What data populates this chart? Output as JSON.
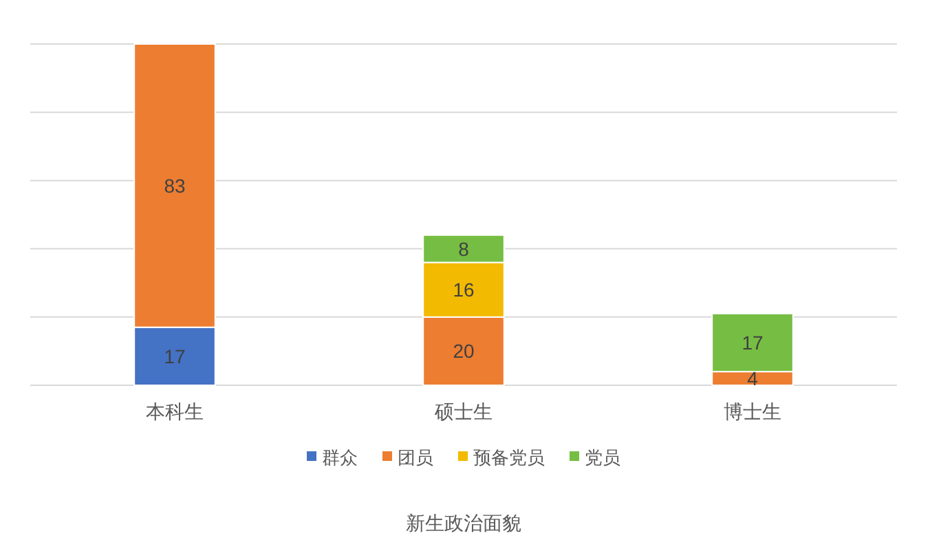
{
  "chart_data": {
    "type": "bar",
    "title": "新生政治面貌",
    "categories": [
      "本科生",
      "硕士生",
      "博士生"
    ],
    "stacked": true,
    "series": [
      {
        "name": "群众",
        "color": "#4472c4",
        "values": [
          17,
          null,
          null
        ]
      },
      {
        "name": "团员",
        "color": "#ed7d31",
        "values": [
          83,
          20,
          4
        ]
      },
      {
        "name": "预备党员",
        "color": "#f2ba00",
        "values": [
          null,
          16,
          null
        ]
      },
      {
        "name": "党员",
        "color": "#76bd43",
        "values": [
          null,
          8,
          17
        ]
      }
    ],
    "ylim": [
      0,
      100
    ],
    "yticks": [
      {
        "value": 0,
        "label": null
      },
      {
        "value": 20,
        "label": null
      },
      {
        "value": 40,
        "label": null
      },
      {
        "value": 60,
        "label": null
      },
      {
        "value": 80,
        "label": null
      },
      {
        "value": 100,
        "label": null
      }
    ],
    "grid": "y",
    "data_labels": true,
    "legend": "bottom",
    "tick_labels": "x"
  }
}
